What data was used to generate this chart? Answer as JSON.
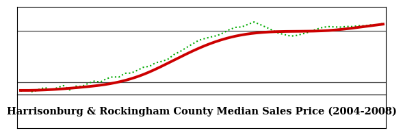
{
  "title": "Harrisonburg & Rockingham County Median Sales Price (2004-2008)",
  "title_fontsize": 10.5,
  "background_color": "#ffffff",
  "smooth_color": "#cc0000",
  "smooth_linewidth": 2.8,
  "dotted_color": "#00aa00",
  "dotted_linewidth": 1.5,
  "hline_color": "#444444",
  "hline_linewidth": 0.9,
  "ylim_min": -0.05,
  "ylim_max": 1.05,
  "hline_y_upper": 0.75,
  "hline_y_lower": 0.1,
  "smooth_kp_x": [
    0,
    5,
    10,
    15,
    20,
    25,
    30,
    35,
    40,
    45,
    50,
    55,
    59
  ],
  "smooth_kp_y": [
    0.0,
    0.01,
    0.04,
    0.09,
    0.2,
    0.38,
    0.56,
    0.68,
    0.73,
    0.74,
    0.75,
    0.79,
    0.83
  ],
  "dot_noise_x": [
    0,
    1,
    2,
    3,
    4,
    5,
    6,
    7,
    8,
    9,
    10,
    11,
    12,
    13,
    14,
    15,
    16,
    17,
    18,
    19,
    20,
    21,
    22,
    23,
    24,
    25,
    26,
    27,
    28,
    29,
    30,
    31,
    32,
    33,
    34,
    35,
    36,
    37,
    38,
    39,
    40,
    41,
    42,
    43,
    44,
    45,
    46,
    47,
    48,
    49,
    50,
    51,
    52,
    53,
    54,
    55,
    56,
    57,
    58,
    59
  ],
  "dot_noise_y": [
    -0.01,
    0.01,
    -0.02,
    0.01,
    0.03,
    -0.01,
    0.02,
    0.04,
    -0.02,
    0.02,
    0.01,
    0.04,
    0.06,
    0.04,
    0.07,
    0.08,
    0.06,
    0.09,
    0.07,
    0.08,
    0.09,
    0.07,
    0.08,
    0.06,
    0.05,
    0.07,
    0.07,
    0.08,
    0.09,
    0.1,
    0.09,
    0.08,
    0.07,
    0.08,
    0.1,
    0.11,
    0.1,
    0.12,
    0.14,
    0.1,
    0.06,
    0.02,
    -0.02,
    -0.04,
    -0.06,
    -0.05,
    -0.03,
    -0.01,
    0.02,
    0.04,
    0.05,
    0.04,
    0.03,
    0.03,
    0.02,
    0.02,
    0.01,
    0.01,
    0.0,
    0.01
  ]
}
